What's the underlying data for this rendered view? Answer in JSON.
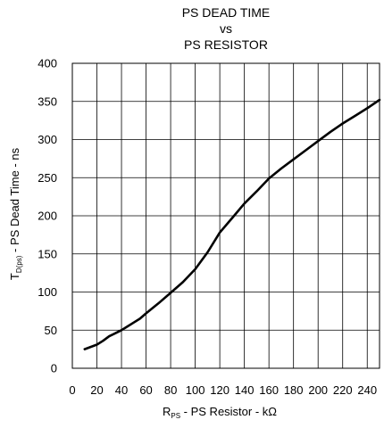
{
  "chart_data": {
    "type": "line",
    "title_lines": [
      "PS DEAD TIME",
      "vs",
      "PS RESISTOR"
    ],
    "xlabel": {
      "prefix": "R",
      "subscript": "PS",
      "text": " - PS Resistor - k",
      "unit_symbol": "Ω"
    },
    "ylabel": {
      "prefix": "T",
      "subscript": "D(ps)",
      "text": " - PS Dead Time - ns"
    },
    "xlim": [
      0,
      250
    ],
    "ylim": [
      0,
      400
    ],
    "x_ticks": [
      "0",
      "20",
      "40",
      "60",
      "80",
      "100",
      "120",
      "140",
      "160",
      "180",
      "200",
      "220",
      "240"
    ],
    "y_ticks": [
      "0",
      "50",
      "100",
      "150",
      "200",
      "250",
      "300",
      "350",
      "400"
    ],
    "grid": true,
    "series": [
      {
        "x": [
          10,
          20,
          25,
          30,
          35,
          40,
          45,
          50,
          55,
          60,
          70,
          80,
          90,
          100,
          110,
          120,
          130,
          140,
          150,
          160,
          170,
          180,
          190,
          200,
          210,
          220,
          230,
          240,
          250
        ],
        "y": [
          25,
          31,
          36,
          42,
          46,
          50,
          55,
          60,
          65,
          72,
          85,
          99,
          113,
          130,
          152,
          178,
          197,
          216,
          232,
          249,
          262,
          274,
          286,
          298,
          310,
          321,
          331,
          341,
          352
        ]
      }
    ]
  }
}
